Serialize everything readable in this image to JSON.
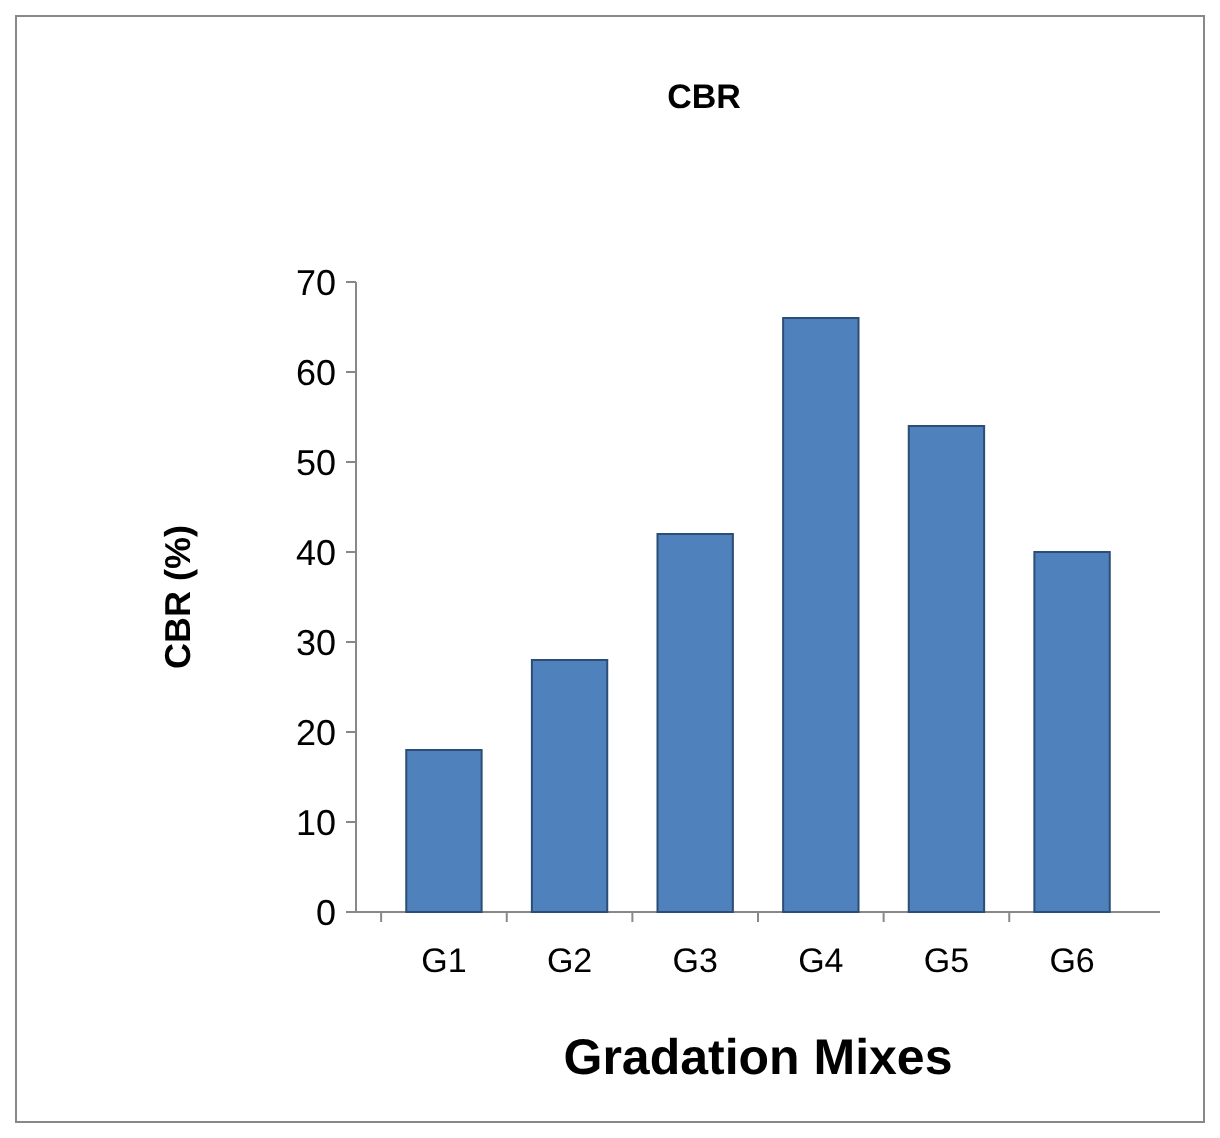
{
  "chart_data": {
    "type": "bar",
    "title": "CBR",
    "xlabel": "Gradation Mixes",
    "ylabel": "CBR (%)",
    "categories": [
      "G1",
      "G2",
      "G3",
      "G4",
      "G5",
      "G6"
    ],
    "values": [
      18,
      28,
      42,
      66,
      54,
      40
    ],
    "color": "#4f81bd",
    "ylim": [
      0,
      70
    ],
    "yticks": [
      0,
      10,
      20,
      30,
      40,
      50,
      60,
      70
    ],
    "grid": false
  }
}
